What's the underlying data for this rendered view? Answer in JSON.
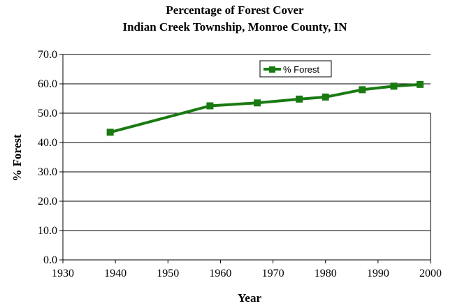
{
  "chart_data": {
    "type": "line",
    "title": "Percentage of Forest Cover",
    "subtitle": "Indian Creek Township, Monroe County, IN",
    "xlabel": "Year",
    "ylabel": "% Forest",
    "xlim": [
      1930,
      2000
    ],
    "ylim": [
      0,
      70
    ],
    "x_ticks": [
      "1930",
      "1940",
      "1950",
      "1960",
      "1970",
      "1980",
      "1990",
      "2000"
    ],
    "y_ticks": [
      "0.0",
      "10.0",
      "20.0",
      "30.0",
      "40.0",
      "50.0",
      "60.0",
      "70.0"
    ],
    "grid": "horizontal",
    "legend_position": "top-right",
    "series": [
      {
        "name": "% Forest",
        "color": "#1a7a12",
        "marker": "square",
        "x": [
          1939,
          1958,
          1967,
          1975,
          1980,
          1987,
          1993,
          1998
        ],
        "y": [
          43.5,
          52.5,
          53.5,
          54.8,
          55.5,
          58.0,
          59.2,
          59.8
        ]
      }
    ]
  }
}
